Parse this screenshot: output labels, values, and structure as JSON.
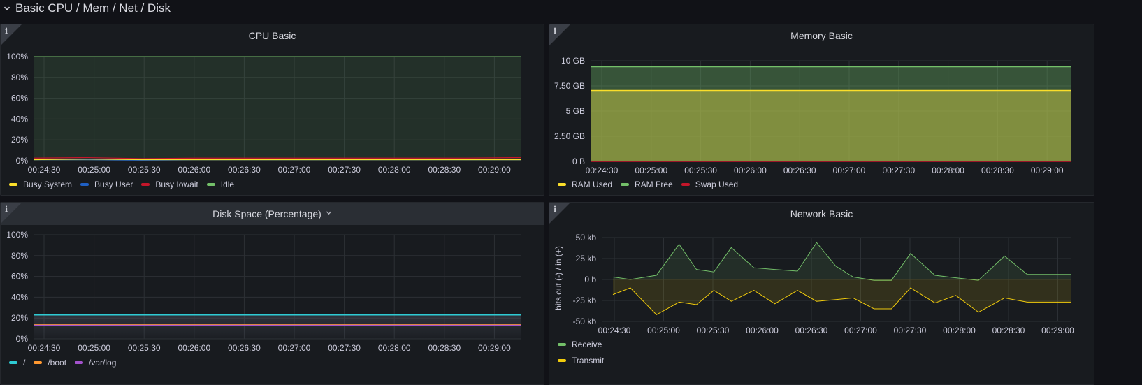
{
  "row": {
    "title": "Basic CPU / Mem / Net / Disk",
    "chevron_icon": "chevron-down-icon"
  },
  "time_ticks": [
    "00:24:30",
    "00:25:00",
    "00:25:30",
    "00:26:00",
    "00:26:30",
    "00:27:00",
    "00:27:30",
    "00:28:00",
    "00:28:30",
    "00:29:00"
  ],
  "panels": {
    "cpu": {
      "title": "CPU Basic",
      "legend": [
        {
          "label": "Busy System",
          "color": "#fade2a"
        },
        {
          "label": "Busy User",
          "color": "#1f60c4"
        },
        {
          "label": "Busy Iowait",
          "color": "#c4162a"
        },
        {
          "label": "Idle",
          "color": "#73bf69"
        }
      ]
    },
    "memory": {
      "title": "Memory Basic",
      "legend": [
        {
          "label": "RAM Used",
          "color": "#fade2a"
        },
        {
          "label": "RAM Free",
          "color": "#73bf69"
        },
        {
          "label": "Swap Used",
          "color": "#c4162a"
        }
      ]
    },
    "disk": {
      "title": "Disk Space (Percentage)",
      "legend": [
        {
          "label": "/",
          "color": "#2ecbd3"
        },
        {
          "label": "/boot",
          "color": "#ff9830"
        },
        {
          "label": "/var/log",
          "color": "#a352cc"
        }
      ]
    },
    "network": {
      "title": "Network Basic",
      "legend": [
        {
          "label": "Receive",
          "color": "#73bf69"
        },
        {
          "label": "Transmit",
          "color": "#f2cc0c"
        }
      ]
    }
  },
  "chart_data": [
    {
      "type": "area",
      "title": "CPU Basic",
      "x": [
        "00:24:30",
        "00:25:00",
        "00:25:30",
        "00:26:00",
        "00:26:30",
        "00:27:00",
        "00:27:30",
        "00:28:00",
        "00:28:30",
        "00:29:00"
      ],
      "y_ticks": [
        "0%",
        "20%",
        "40%",
        "60%",
        "80%",
        "100%"
      ],
      "ylim": [
        0,
        100
      ],
      "series": [
        {
          "name": "Busy System",
          "values": [
            1,
            1.5,
            1,
            1,
            1,
            1,
            1,
            1,
            1,
            1
          ]
        },
        {
          "name": "Busy User",
          "values": [
            1,
            1,
            0.5,
            1,
            1,
            1,
            1,
            1,
            1,
            1
          ]
        },
        {
          "name": "Busy Iowait",
          "values": [
            2.5,
            3,
            2,
            2.5,
            2.5,
            2.5,
            2.5,
            2.5,
            2.5,
            3
          ]
        },
        {
          "name": "Idle",
          "values": [
            100,
            100,
            100,
            100,
            100,
            100,
            100,
            100,
            100,
            100
          ]
        }
      ]
    },
    {
      "type": "area",
      "title": "Memory Basic",
      "x": [
        "00:24:30",
        "00:25:00",
        "00:25:30",
        "00:26:00",
        "00:26:30",
        "00:27:00",
        "00:27:30",
        "00:28:00",
        "00:28:30",
        "00:29:00"
      ],
      "y_ticks": [
        "0 B",
        "2.50 GB",
        "5 GB",
        "7.50 GB",
        "10 GB"
      ],
      "ylim": [
        0,
        10
      ],
      "series": [
        {
          "name": "RAM Used",
          "values": [
            7.05,
            7.05,
            7.05,
            7.05,
            7.05,
            7.05,
            7.05,
            7.05,
            7.05,
            7.05
          ]
        },
        {
          "name": "RAM Free",
          "values": [
            9.4,
            9.4,
            9.4,
            9.4,
            9.4,
            9.4,
            9.4,
            9.4,
            9.4,
            9.4
          ]
        },
        {
          "name": "Swap Used",
          "values": [
            0,
            0,
            0,
            0,
            0,
            0,
            0,
            0,
            0,
            0
          ]
        }
      ]
    },
    {
      "type": "area",
      "title": "Disk Space (Percentage)",
      "x": [
        "00:24:30",
        "00:25:00",
        "00:25:30",
        "00:26:00",
        "00:26:30",
        "00:27:00",
        "00:27:30",
        "00:28:00",
        "00:28:30",
        "00:29:00"
      ],
      "y_ticks": [
        "0%",
        "20%",
        "40%",
        "60%",
        "80%",
        "100%"
      ],
      "ylim": [
        0,
        100
      ],
      "series": [
        {
          "name": "/",
          "values": [
            23,
            23,
            23,
            23,
            23,
            23,
            23,
            23,
            23,
            23
          ]
        },
        {
          "name": "/boot",
          "values": [
            14,
            14,
            14,
            14,
            14,
            14,
            14,
            14,
            14,
            14
          ]
        },
        {
          "name": "/var/log",
          "values": [
            13,
            13,
            13,
            13,
            13,
            13,
            13,
            13,
            13,
            13
          ]
        }
      ]
    },
    {
      "type": "area",
      "title": "Network Basic",
      "ylabel": "bits out (-) / in (+)",
      "x_ticks": [
        "00:24:30",
        "00:25:00",
        "00:25:30",
        "00:26:00",
        "00:26:30",
        "00:27:00",
        "00:27:30",
        "00:28:00",
        "00:28:30",
        "00:29:00"
      ],
      "y_ticks": [
        "-50 kb",
        "-25 kb",
        "0 b",
        "25 kb",
        "50 kb"
      ],
      "ylim": [
        -50,
        50
      ],
      "x_seconds": [
        0,
        10,
        25,
        38,
        48,
        58,
        68,
        81,
        93,
        106,
        117,
        128,
        138,
        150,
        160,
        171,
        185,
        197,
        210,
        225,
        238,
        250,
        263
      ],
      "series": [
        {
          "name": "Receive",
          "values": [
            3,
            0,
            5,
            42,
            12,
            9,
            38,
            14,
            12,
            10,
            44,
            16,
            3,
            -1,
            -1,
            31,
            5,
            2,
            -1,
            28,
            6,
            6,
            6
          ]
        },
        {
          "name": "Transmit",
          "values": [
            -18,
            -10,
            -42,
            -27,
            -30,
            -13,
            -26,
            -13,
            -29,
            -13,
            -26,
            -24,
            -22,
            -35,
            -35,
            -10,
            -28,
            -19,
            -39,
            -22,
            -27,
            -27,
            -27
          ]
        }
      ]
    }
  ]
}
